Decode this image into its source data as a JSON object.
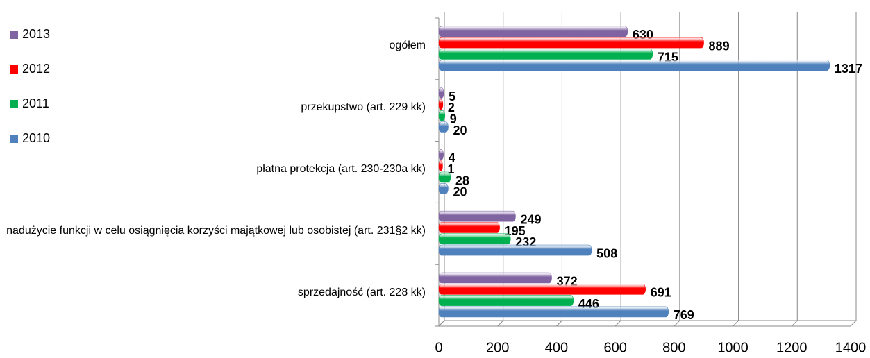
{
  "chart_data": {
    "type": "bar",
    "orientation": "horizontal",
    "categories": [
      "ogółem",
      "przekupstwo (art. 229 kk)",
      "płatna protekcja (art. 230-230a kk)",
      "nadużycie funkcji w celu osiągnięcia korzyści majątkowej lub osobistej (art. 231§2 kk)",
      "sprzedajność (art. 228 kk)"
    ],
    "series": [
      {
        "name": "2013",
        "color": "#8064a2",
        "values": [
          630,
          5,
          4,
          249,
          372
        ]
      },
      {
        "name": "2012",
        "color": "#ff0000",
        "values": [
          889,
          2,
          1,
          195,
          691
        ]
      },
      {
        "name": "2011",
        "color": "#00b050",
        "values": [
          715,
          9,
          28,
          232,
          446
        ]
      },
      {
        "name": "2010",
        "color": "#4f81bd",
        "values": [
          1317,
          20,
          20,
          508,
          769
        ]
      }
    ],
    "xlim": [
      0,
      1400
    ],
    "xticks": [
      0,
      200,
      400,
      600,
      800,
      1000,
      1200,
      1400
    ],
    "grid": true,
    "legend": "left"
  }
}
